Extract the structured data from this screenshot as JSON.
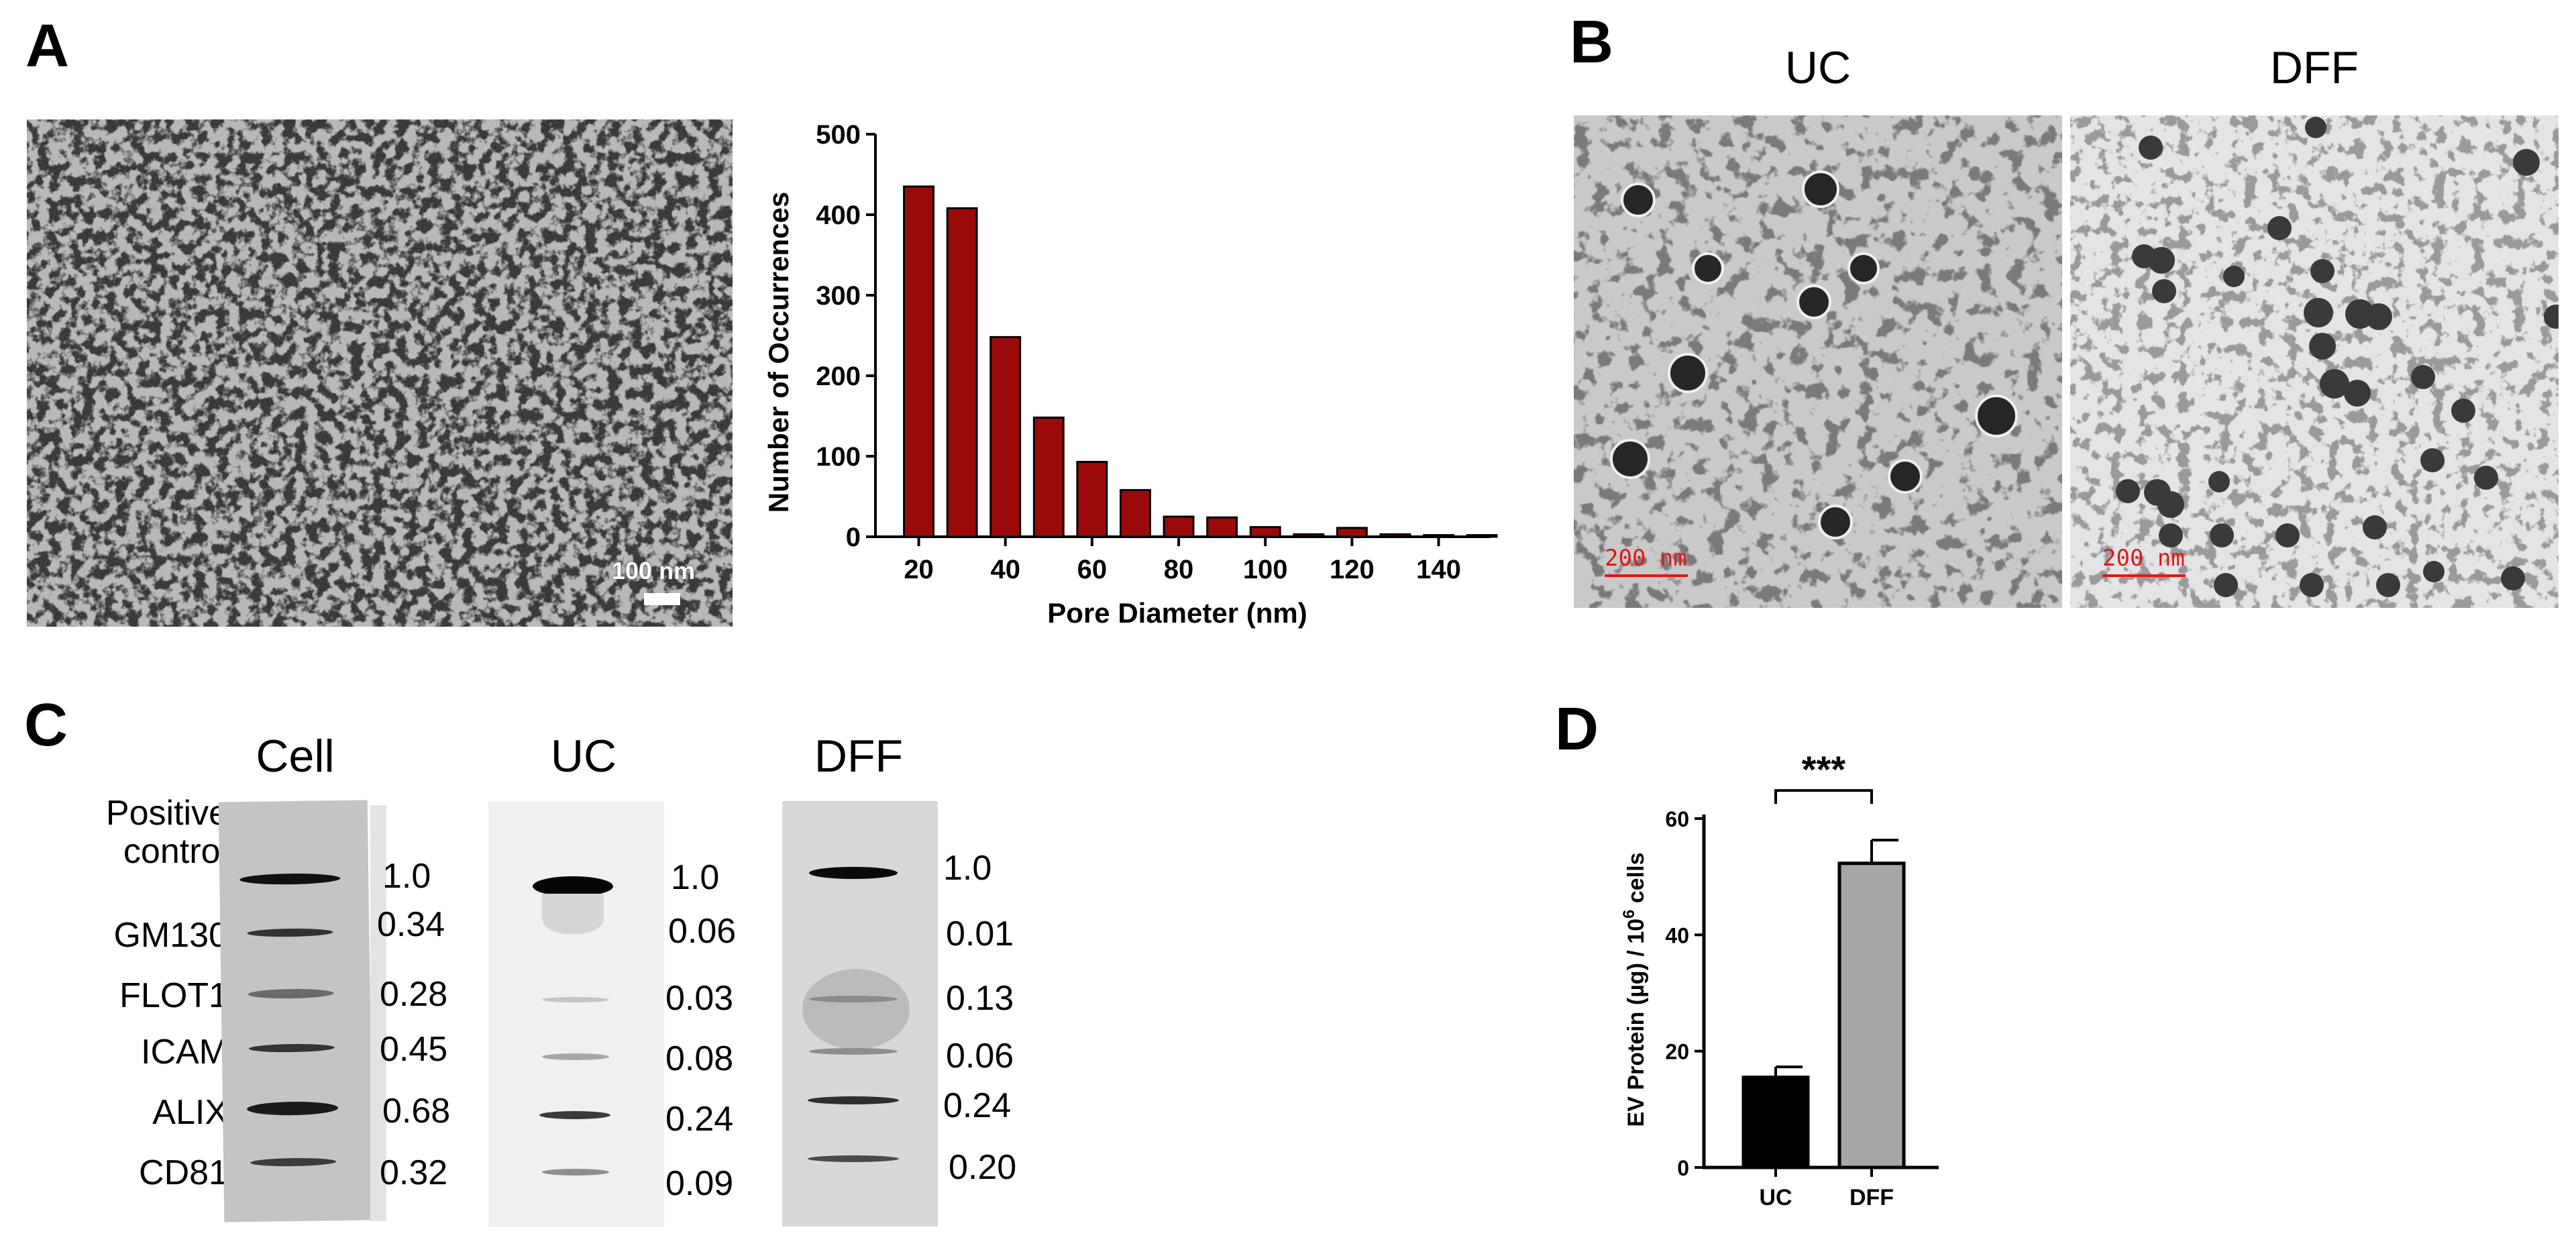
{
  "panels": {
    "a": {
      "letter": "A",
      "sem_scale_label": "100 nm",
      "histogram": {
        "type": "bar",
        "xlabel": "Pore Diameter (nm)",
        "ylabel": "Number of Occurrences",
        "ylim": [
          0,
          500
        ],
        "xlim": [
          10,
          152
        ],
        "yticks": [
          "0",
          "100",
          "200",
          "300",
          "400",
          "500"
        ],
        "xticks": [
          "20",
          "40",
          "60",
          "80",
          "100",
          "120",
          "140"
        ],
        "x": [
          20,
          30,
          40,
          50,
          60,
          70,
          80,
          90,
          100,
          110,
          120,
          130,
          140,
          150
        ],
        "values": [
          435,
          408,
          248,
          148,
          93,
          58,
          25,
          24,
          12,
          3,
          11,
          3,
          2,
          2
        ],
        "bar_color": "#9b0a0a"
      }
    },
    "b": {
      "letter": "B",
      "uc_title": "UC",
      "dff_title": "DFF",
      "uc_scale_label": "200  nm",
      "dff_scale_label": "200  nm"
    },
    "c": {
      "letter": "C",
      "column_titles": [
        "Cell",
        "UC",
        "DFF"
      ],
      "row_labels": [
        "Positive control",
        "GM130",
        "FLOT1",
        "ICAM",
        "ALIX",
        "CD81"
      ],
      "cell_values": [
        "1.0",
        "0.34",
        "0.28",
        "0.45",
        "0.68",
        "0.32"
      ],
      "uc_values": [
        "1.0",
        "0.06",
        "0.03",
        "0.08",
        "0.24",
        "0.09"
      ],
      "dff_values": [
        "1.0",
        "0.01",
        "0.13",
        "0.06",
        "0.24",
        "0.20"
      ]
    },
    "d": {
      "letter": "D",
      "chart": {
        "type": "bar",
        "categories": [
          "UC",
          "DFF"
        ],
        "values": [
          15.5,
          52.3
        ],
        "errors": [
          1.8,
          4.0
        ],
        "ylim": [
          0,
          60
        ],
        "yticks": [
          "0",
          "20",
          "40",
          "60"
        ],
        "ylabel_main": "EV Protein (µg) / 10",
        "ylabel_sup": "6",
        "ylabel_tail": " cells",
        "significance": "***",
        "colors": [
          "#000000",
          "#a6a6a6"
        ]
      }
    }
  },
  "chart_data": [
    {
      "type": "bar",
      "title": "",
      "xlabel": "Pore Diameter (nm)",
      "ylabel": "Number of Occurrences",
      "x": [
        20,
        30,
        40,
        50,
        60,
        70,
        80,
        90,
        100,
        110,
        120,
        130,
        140,
        150
      ],
      "values": [
        435,
        408,
        248,
        148,
        93,
        58,
        25,
        24,
        12,
        3,
        11,
        3,
        2,
        2
      ],
      "ylim": [
        0,
        500
      ]
    },
    {
      "type": "bar",
      "title": "",
      "xlabel": "",
      "ylabel": "EV Protein (µg) / 10^6 cells",
      "categories": [
        "UC",
        "DFF"
      ],
      "values": [
        15.5,
        52.3
      ],
      "errors": [
        1.8,
        4.0
      ],
      "ylim": [
        0,
        60
      ],
      "annotation": "***"
    }
  ]
}
